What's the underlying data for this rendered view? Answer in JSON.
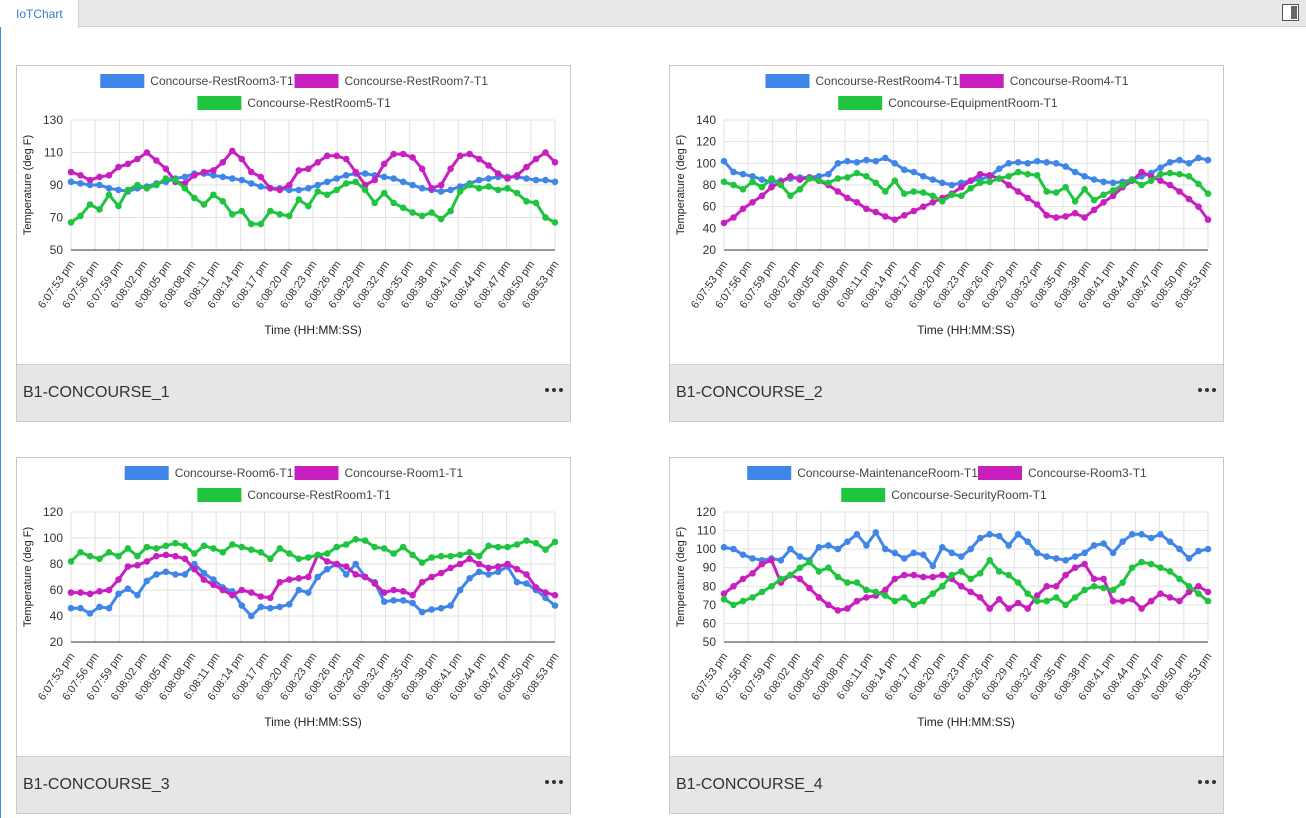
{
  "tab": {
    "label": "IoTChart"
  },
  "x_axis_title": "Time (HH:MM:SS)",
  "y_axis_title": "Temperature (deg F)",
  "time_ticks": [
    "6:07:53 pm",
    "6:07:56 pm",
    "6:07:59 pm",
    "6:08:02 pm",
    "6:08:05 pm",
    "6:08:08 pm",
    "6:08:11 pm",
    "6:08:14 pm",
    "6:08:17 pm",
    "6:08:20 pm",
    "6:08:23 pm",
    "6:08:26 pm",
    "6:08:29 pm",
    "6:08:32 pm",
    "6:08:35 pm",
    "6:08:38 pm",
    "6:08:41 pm",
    "6:08:44 pm",
    "6:08:47 pm",
    "6:08:50 pm",
    "6:08:53 pm"
  ],
  "colors": {
    "blue": "#3f86e8",
    "magenta": "#c81fbf",
    "green": "#1fc43f",
    "tab_text": "#2f7fd0"
  },
  "chart_data": [
    {
      "type": "line",
      "title": "B1-CONCOURSE_1",
      "xlabel": "Time (HH:MM:SS)",
      "ylabel": "Temperature (deg F)",
      "ylim": [
        50,
        130
      ],
      "yticks": [
        50,
        70,
        90,
        110,
        130
      ],
      "grid": true,
      "legend": "top",
      "series": [
        {
          "name": "Concourse-RestRoom3-T1",
          "color": "#3f86e8",
          "values": [
            92,
            91,
            90,
            90,
            88,
            87,
            86,
            88,
            89,
            91,
            92,
            94,
            95,
            97,
            97,
            96,
            95,
            94,
            93,
            91,
            89,
            88,
            88,
            87,
            87,
            88,
            90,
            92,
            94,
            96,
            97,
            97,
            96,
            95,
            94,
            92,
            90,
            88,
            87,
            86,
            87,
            89,
            91,
            93,
            94,
            95,
            95,
            95,
            94,
            93,
            93,
            92
          ]
        },
        {
          "name": "Concourse-RestRoom7-T1",
          "color": "#c81fbf",
          "values": [
            98,
            96,
            93,
            95,
            96,
            101,
            103,
            106,
            110,
            105,
            100,
            92,
            91,
            96,
            98,
            99,
            104,
            111,
            106,
            98,
            95,
            88,
            87,
            90,
            99,
            100,
            104,
            108,
            108,
            106,
            98,
            90,
            93,
            103,
            109,
            109,
            107,
            100,
            88,
            90,
            100,
            108,
            109,
            106,
            102,
            97,
            94,
            96,
            101,
            106,
            110,
            104
          ]
        },
        {
          "name": "Concourse-RestRoom5-T1",
          "color": "#1fc43f",
          "values": [
            67,
            71,
            78,
            75,
            84,
            77,
            87,
            90,
            88,
            90,
            94,
            93,
            88,
            82,
            78,
            84,
            80,
            72,
            74,
            66,
            66,
            74,
            72,
            71,
            81,
            77,
            86,
            84,
            87,
            91,
            92,
            87,
            79,
            85,
            79,
            76,
            73,
            71,
            73,
            69,
            74,
            86,
            90,
            88,
            89,
            87,
            88,
            85,
            80,
            79,
            70,
            67
          ]
        }
      ]
    },
    {
      "type": "line",
      "title": "B1-CONCOURSE_2",
      "xlabel": "Time (HH:MM:SS)",
      "ylabel": "Temperature (deg F)",
      "ylim": [
        20,
        140
      ],
      "yticks": [
        20,
        40,
        60,
        80,
        100,
        120,
        140
      ],
      "grid": true,
      "legend": "top",
      "series": [
        {
          "name": "Concourse-RestRoom4-T1",
          "color": "#3f86e8",
          "values": [
            102,
            92,
            90,
            88,
            85,
            83,
            84,
            86,
            87,
            87,
            88,
            90,
            100,
            102,
            101,
            103,
            102,
            105,
            100,
            94,
            92,
            88,
            85,
            82,
            80,
            82,
            84,
            85,
            88,
            95,
            100,
            101,
            100,
            102,
            101,
            100,
            97,
            92,
            88,
            85,
            83,
            82,
            83,
            85,
            88,
            91,
            96,
            101,
            103,
            100,
            105,
            103
          ]
        },
        {
          "name": "Concourse-Room4-T1",
          "color": "#c81fbf",
          "values": [
            45,
            50,
            58,
            64,
            70,
            78,
            83,
            88,
            85,
            87,
            84,
            80,
            74,
            68,
            64,
            58,
            55,
            51,
            48,
            52,
            56,
            60,
            64,
            68,
            72,
            78,
            84,
            90,
            89,
            86,
            80,
            74,
            68,
            62,
            52,
            50,
            51,
            54,
            50,
            57,
            64,
            70,
            78,
            84,
            92,
            88,
            84,
            80,
            74,
            67,
            60,
            48
          ]
        },
        {
          "name": "Concourse-EquipmentRoom-T1",
          "color": "#1fc43f",
          "values": [
            83,
            80,
            76,
            83,
            78,
            86,
            80,
            70,
            76,
            86,
            84,
            82,
            86,
            87,
            91,
            88,
            82,
            74,
            84,
            72,
            74,
            73,
            70,
            65,
            71,
            70,
            77,
            82,
            83,
            86,
            88,
            92,
            90,
            89,
            74,
            73,
            78,
            65,
            76,
            66,
            71,
            75,
            80,
            85,
            80,
            84,
            90,
            91,
            90,
            88,
            81,
            72
          ]
        }
      ]
    },
    {
      "type": "line",
      "title": "B1-CONCOURSE_3",
      "xlabel": "Time (HH:MM:SS)",
      "ylabel": "Temperature (deg F)",
      "ylim": [
        20,
        120
      ],
      "yticks": [
        20,
        40,
        60,
        80,
        100,
        120
      ],
      "grid": true,
      "legend": "top",
      "series": [
        {
          "name": "Concourse-Room6-T1",
          "color": "#3f86e8",
          "values": [
            46,
            46,
            42,
            47,
            46,
            57,
            61,
            56,
            67,
            72,
            74,
            72,
            72,
            80,
            73,
            68,
            62,
            59,
            48,
            40,
            47,
            46,
            47,
            49,
            60,
            58,
            70,
            76,
            80,
            72,
            80,
            70,
            66,
            51,
            52,
            52,
            50,
            43,
            45,
            46,
            48,
            60,
            69,
            74,
            72,
            74,
            78,
            66,
            65,
            60,
            54,
            48
          ]
        },
        {
          "name": "Concourse-Room1-T1",
          "color": "#c81fbf",
          "values": [
            58,
            58,
            57,
            59,
            60,
            68,
            78,
            79,
            82,
            86,
            87,
            86,
            84,
            76,
            68,
            64,
            60,
            56,
            60,
            58,
            55,
            54,
            66,
            68,
            69,
            70,
            87,
            82,
            80,
            78,
            72,
            70,
            65,
            58,
            60,
            59,
            56,
            66,
            70,
            73,
            77,
            80,
            84,
            80,
            77,
            78,
            80,
            76,
            72,
            62,
            58,
            56
          ]
        },
        {
          "name": "Concourse-RestRoom1-T1",
          "color": "#1fc43f",
          "values": [
            82,
            89,
            86,
            84,
            89,
            86,
            92,
            86,
            93,
            92,
            94,
            96,
            94,
            88,
            94,
            92,
            89,
            95,
            93,
            91,
            89,
            84,
            92,
            88,
            84,
            85,
            87,
            88,
            93,
            95,
            99,
            98,
            93,
            92,
            88,
            93,
            87,
            81,
            85,
            86,
            86,
            87,
            89,
            86,
            94,
            93,
            93,
            95,
            98,
            96,
            91,
            97
          ]
        }
      ]
    },
    {
      "type": "line",
      "title": "B1-CONCOURSE_4",
      "xlabel": "Time (HH:MM:SS)",
      "ylabel": "Temperature (deg F)",
      "ylim": [
        50,
        120
      ],
      "yticks": [
        50,
        60,
        70,
        80,
        90,
        100,
        110,
        120
      ],
      "grid": true,
      "legend": "top",
      "series": [
        {
          "name": "Concourse-MaintenanceRoom-T1",
          "color": "#3f86e8",
          "values": [
            101,
            100,
            97,
            95,
            94,
            95,
            94,
            100,
            96,
            94,
            101,
            102,
            100,
            104,
            108,
            102,
            109,
            100,
            98,
            95,
            98,
            97,
            91,
            101,
            98,
            96,
            100,
            106,
            108,
            107,
            102,
            108,
            104,
            98,
            96,
            95,
            94,
            96,
            98,
            102,
            103,
            98,
            104,
            108,
            108,
            106,
            108,
            104,
            100,
            95,
            99,
            100
          ]
        },
        {
          "name": "Concourse-Room3-T1",
          "color": "#c81fbf",
          "values": [
            76,
            80,
            84,
            87,
            92,
            94,
            82,
            86,
            84,
            79,
            74,
            70,
            67,
            68,
            72,
            74,
            75,
            78,
            84,
            86,
            86,
            85,
            85,
            86,
            84,
            80,
            77,
            74,
            68,
            73,
            68,
            71,
            68,
            75,
            80,
            80,
            86,
            90,
            92,
            84,
            84,
            72,
            72,
            73,
            68,
            72,
            76,
            74,
            72,
            77,
            80,
            77
          ]
        },
        {
          "name": "Concourse-SecurityRoom-T1",
          "color": "#1fc43f",
          "values": [
            73,
            70,
            72,
            74,
            77,
            80,
            84,
            86,
            90,
            93,
            88,
            90,
            85,
            82,
            82,
            78,
            77,
            75,
            72,
            74,
            70,
            72,
            76,
            80,
            86,
            88,
            84,
            87,
            94,
            88,
            86,
            82,
            76,
            72,
            72,
            74,
            70,
            74,
            78,
            80,
            79,
            78,
            82,
            90,
            93,
            92,
            90,
            88,
            84,
            80,
            76,
            72
          ]
        }
      ]
    }
  ]
}
